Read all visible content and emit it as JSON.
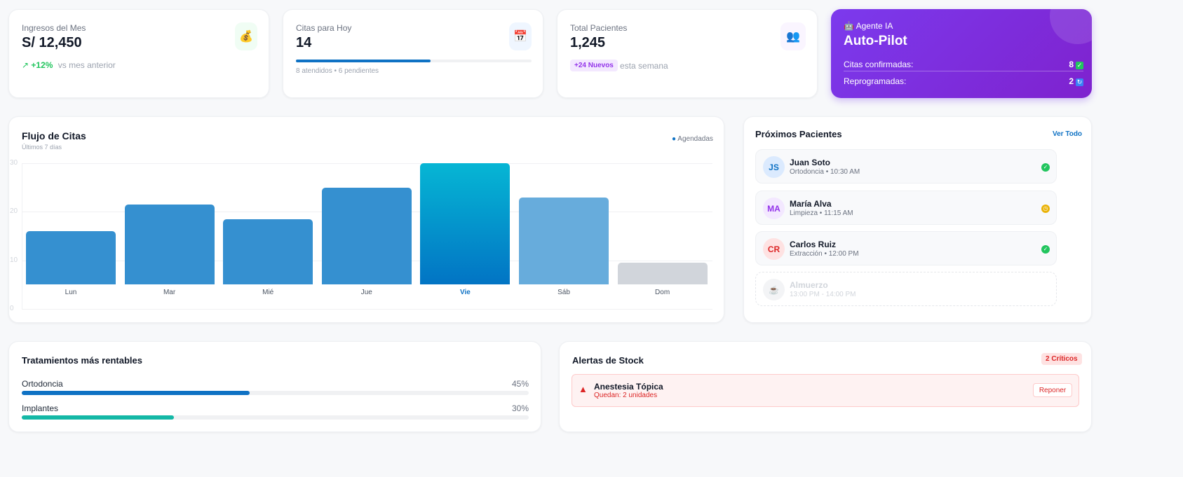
{
  "stats": {
    "revenue": {
      "label": "Ingresos del Mes",
      "value": "S/ 12,450",
      "change": "+12%",
      "change_note": "vs mes anterior",
      "icon": "money-bag-icon"
    },
    "appointments": {
      "label": "Citas para Hoy",
      "value": "14",
      "progress": 0.5714,
      "note": "8 atendidos • 6 pendientes",
      "icon": "calendar-check-icon"
    },
    "patients": {
      "label": "Total Pacientes",
      "value": "1,245",
      "badge": "+24 Nuevos",
      "note": "esta semana",
      "icon": "users-icon"
    }
  },
  "ai_agent": {
    "label": "Agente IA",
    "title": "Auto-Pilot",
    "rows": [
      {
        "label": "Citas confirmadas:",
        "value": "8"
      },
      {
        "label": "Reprogramadas:",
        "value": "2"
      }
    ]
  },
  "chart_data": {
    "type": "bar",
    "title": "Flujo de Citas",
    "subtitle": "Últimos 7 días",
    "legend": "Agendadas",
    "legend_position": "top-right",
    "ylim": [
      0,
      30
    ],
    "yticks": [
      0,
      10,
      20,
      30
    ],
    "grid": true,
    "categories": [
      "Lun",
      "Mar",
      "Mié",
      "Jue",
      "Vie",
      "Sáb",
      "Dom"
    ],
    "values": [
      16,
      21.5,
      18.5,
      25,
      30,
      23,
      9.5
    ],
    "highlight": "Vie"
  },
  "upcoming": {
    "title": "Próximos Pacientes",
    "view_all": "Ver Todo",
    "items": [
      {
        "initials": "JS",
        "name": "Juan Soto",
        "detail": "Ortodoncia • 10:30 AM",
        "status": "confirmed"
      },
      {
        "initials": "MA",
        "name": "María Alva",
        "detail": "Limpieza • 11:15 AM",
        "status": "pending"
      },
      {
        "initials": "CR",
        "name": "Carlos Ruiz",
        "detail": "Extracción • 12:00 PM",
        "status": "confirmed"
      },
      {
        "initials": "",
        "name": "Almuerzo",
        "detail": "13:00 PM - 14:00 PM",
        "status": "break"
      }
    ]
  },
  "treatments": {
    "title": "Tratamientos más rentables",
    "items": [
      {
        "name": "Ortodoncia",
        "pct": "45%",
        "value": 45,
        "color": "#0f72c4"
      },
      {
        "name": "Implantes",
        "pct": "30%",
        "value": 30,
        "color": "#14b8a6"
      }
    ]
  },
  "stock": {
    "title": "Alertas de Stock",
    "badge": "2 Críticos",
    "items": [
      {
        "name": "Anestesia Tópica",
        "detail": "Quedan: 2 unidades",
        "action": "Reponer"
      }
    ]
  }
}
